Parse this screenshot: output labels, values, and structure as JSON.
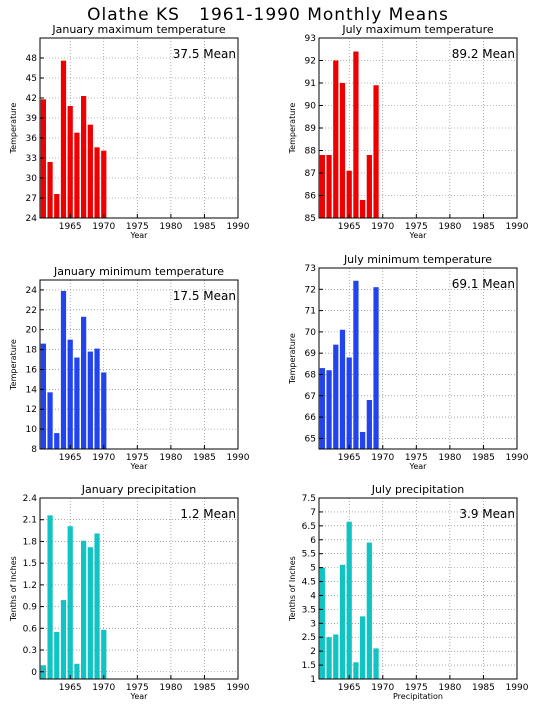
{
  "page_title": "Olathe KS   1961-1990 Monthly Means",
  "chart_data": [
    {
      "type": "bar",
      "title": "January maximum temperature",
      "mean_label": "37.5 Mean",
      "xlabel": "Year",
      "ylabel": "Temperature",
      "ylim": [
        24,
        51
      ],
      "yticks": [
        "24",
        "27",
        "30",
        "33",
        "36",
        "39",
        "42",
        "45",
        "48"
      ],
      "xlim": [
        1960.5,
        1990
      ],
      "xticks": [
        "1965",
        "1970",
        "1975",
        "1980",
        "1985",
        "1990"
      ],
      "color": "#ee0000",
      "x": [
        1961,
        1962,
        1963,
        1964,
        1965,
        1966,
        1967,
        1968,
        1969,
        1970
      ],
      "values": [
        41.8,
        32.4,
        27.6,
        47.6,
        40.8,
        36.8,
        42.3,
        38.0,
        34.6,
        34.1
      ]
    },
    {
      "type": "bar",
      "title": "July maximum temperature",
      "mean_label": "89.2 Mean",
      "xlabel": "Year",
      "ylabel": "Temperature",
      "ylim": [
        85,
        93
      ],
      "yticks": [
        "85",
        "86",
        "87",
        "88",
        "89",
        "90",
        "91",
        "92",
        "93"
      ],
      "xlim": [
        1960.5,
        1990
      ],
      "xticks": [
        "1965",
        "1970",
        "1975",
        "1980",
        "1985",
        "1990"
      ],
      "color": "#ee0000",
      "x": [
        1961,
        1962,
        1963,
        1964,
        1965,
        1966,
        1967,
        1968,
        1969
      ],
      "values": [
        87.8,
        87.8,
        92.0,
        91.0,
        87.1,
        92.4,
        85.8,
        87.8,
        90.9
      ]
    },
    {
      "type": "bar",
      "title": "January minimum temperature",
      "mean_label": "17.5 Mean",
      "xlabel": "Year",
      "ylabel": "Temperature",
      "ylim": [
        8,
        25
      ],
      "yticks": [
        "8",
        "10",
        "12",
        "14",
        "16",
        "18",
        "20",
        "22",
        "24"
      ],
      "xlim": [
        1960.5,
        1990
      ],
      "xticks": [
        "1965",
        "1970",
        "1975",
        "1980",
        "1985",
        "1990"
      ],
      "color": "#2244ee",
      "x": [
        1961,
        1962,
        1963,
        1964,
        1965,
        1966,
        1967,
        1968,
        1969,
        1970
      ],
      "values": [
        18.6,
        13.7,
        9.6,
        23.9,
        19.0,
        17.2,
        21.3,
        17.8,
        18.1,
        15.7
      ]
    },
    {
      "type": "bar",
      "title": "July minimum temperature",
      "mean_label": "69.1 Mean",
      "xlabel": "Year",
      "ylabel": "Temperature",
      "ylim": [
        64.5,
        73
      ],
      "yticks": [
        "65",
        "66",
        "67",
        "68",
        "69",
        "70",
        "71",
        "72",
        "73"
      ],
      "xlim": [
        1960.5,
        1990
      ],
      "xticks": [
        "1965",
        "1970",
        "1975",
        "1980",
        "1985",
        "1990"
      ],
      "color": "#2244ee",
      "x": [
        1961,
        1962,
        1963,
        1964,
        1965,
        1966,
        1967,
        1968,
        1969
      ],
      "values": [
        68.3,
        68.2,
        69.4,
        70.1,
        68.8,
        72.4,
        65.3,
        66.8,
        72.1
      ]
    },
    {
      "type": "bar",
      "title": "January precipitation",
      "mean_label": "1.2 Mean",
      "xlabel": "Year",
      "ylabel": "Tenths of Inches",
      "ylim": [
        -0.1,
        2.4
      ],
      "yticks": [
        "0",
        "0.3",
        "0.6",
        "0.9",
        "1.2",
        "1.5",
        "1.8",
        "2.1",
        "2.4"
      ],
      "xlim": [
        1960.5,
        1990
      ],
      "xticks": [
        "1965",
        "1970",
        "1975",
        "1980",
        "1985",
        "1990"
      ],
      "color": "#11c4c4",
      "x": [
        1961,
        1962,
        1963,
        1964,
        1965,
        1966,
        1967,
        1968,
        1969,
        1970
      ],
      "values": [
        0.09,
        2.16,
        0.55,
        0.99,
        2.01,
        0.11,
        1.81,
        1.72,
        1.91,
        0.58
      ]
    },
    {
      "type": "bar",
      "title": "July precipitation",
      "mean_label": "3.9 Mean",
      "xlabel": "Precipitation",
      "ylabel": "Tenths of Inches",
      "ylim": [
        1,
        7.5
      ],
      "yticks": [
        "1",
        "1.5",
        "2",
        "2.5",
        "3",
        "3.5",
        "4",
        "4.5",
        "5",
        "5.5",
        "6",
        "6.5",
        "7",
        "7.5"
      ],
      "xlim": [
        1960.5,
        1990
      ],
      "xticks": [
        "1965",
        "1970",
        "1975",
        "1980",
        "1985",
        "1990"
      ],
      "color": "#11c4c4",
      "x": [
        1961,
        1962,
        1963,
        1964,
        1965,
        1966,
        1967,
        1968,
        1969
      ],
      "values": [
        5.0,
        2.5,
        2.6,
        5.1,
        6.65,
        1.6,
        3.25,
        5.9,
        2.1
      ]
    }
  ]
}
